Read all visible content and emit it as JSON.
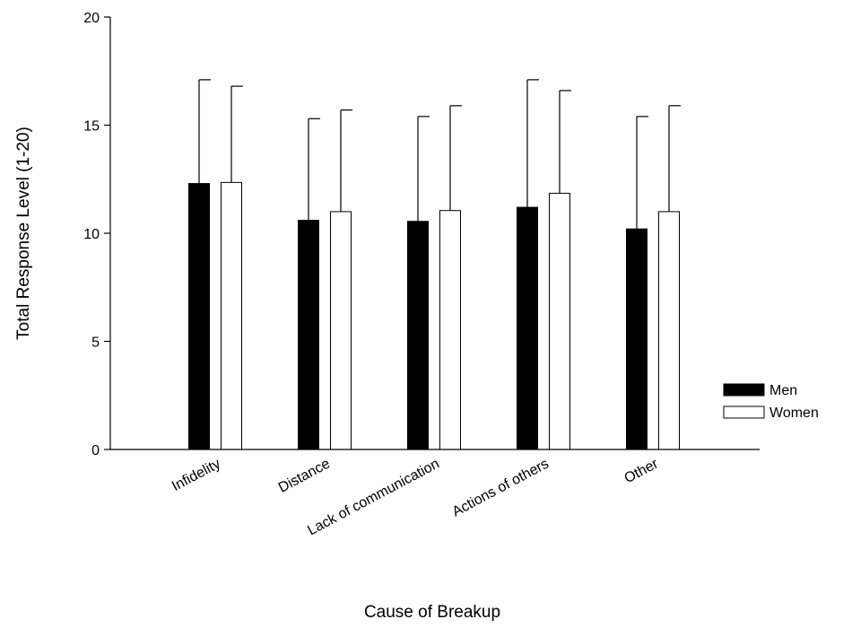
{
  "chart_data": {
    "type": "bar",
    "title": "",
    "xlabel": "Cause of Breakup",
    "ylabel": "Total Response Level (1-20)",
    "categories": [
      "Infidelity",
      "Distance",
      "Lack of communication",
      "Actions of others",
      "Other"
    ],
    "series": [
      {
        "name": "Men",
        "color": "#000000",
        "values": [
          12.3,
          10.6,
          10.55,
          11.2,
          10.2
        ],
        "error_upper": [
          17.1,
          15.3,
          15.4,
          17.1,
          15.4
        ]
      },
      {
        "name": "Women",
        "color": "#ffffff",
        "values": [
          12.35,
          11.0,
          11.05,
          11.85,
          11.0
        ],
        "error_upper": [
          16.8,
          15.7,
          15.9,
          16.6,
          15.9
        ]
      }
    ],
    "ylim": [
      0,
      20
    ],
    "yticks": [
      "0",
      "5",
      "10",
      "15",
      "20"
    ],
    "grid": false,
    "legend_position": "right"
  }
}
